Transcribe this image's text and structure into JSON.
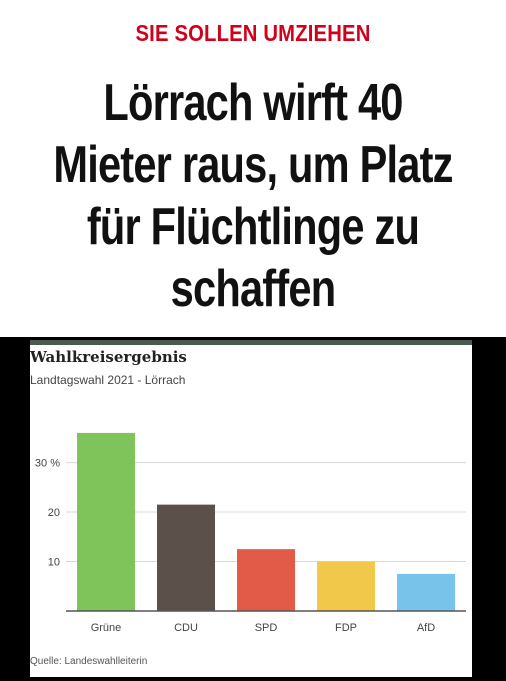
{
  "article": {
    "kicker": "SIE SOLLEN UMZIEHEN",
    "headline_lines": [
      "Lörrach wirft 40",
      "Mieter raus, um Platz",
      "für Flüchtlinge zu",
      "schaffen"
    ]
  },
  "chart_data": {
    "type": "bar",
    "title": "Wahlkreisergebnis",
    "subtitle": "Landtagswahl 2021 - Lörrach",
    "source": "Quelle: Landeswahlleiterin",
    "categories": [
      "Grüne",
      "CDU",
      "SPD",
      "FDP",
      "AfD"
    ],
    "values": [
      36,
      21.5,
      12.5,
      10,
      7.5
    ],
    "colors": [
      "#7fc45a",
      "#5b504a",
      "#e25a48",
      "#f2c84b",
      "#78c3ea"
    ],
    "ytick_labels": [
      "10",
      "20",
      "30 %"
    ],
    "yticks": [
      10,
      20,
      30
    ],
    "ylim": [
      0,
      38
    ],
    "grid": true
  },
  "colors": {
    "kicker": "#d0021b",
    "headline": "#111111",
    "card_line": "#4a5a50"
  }
}
